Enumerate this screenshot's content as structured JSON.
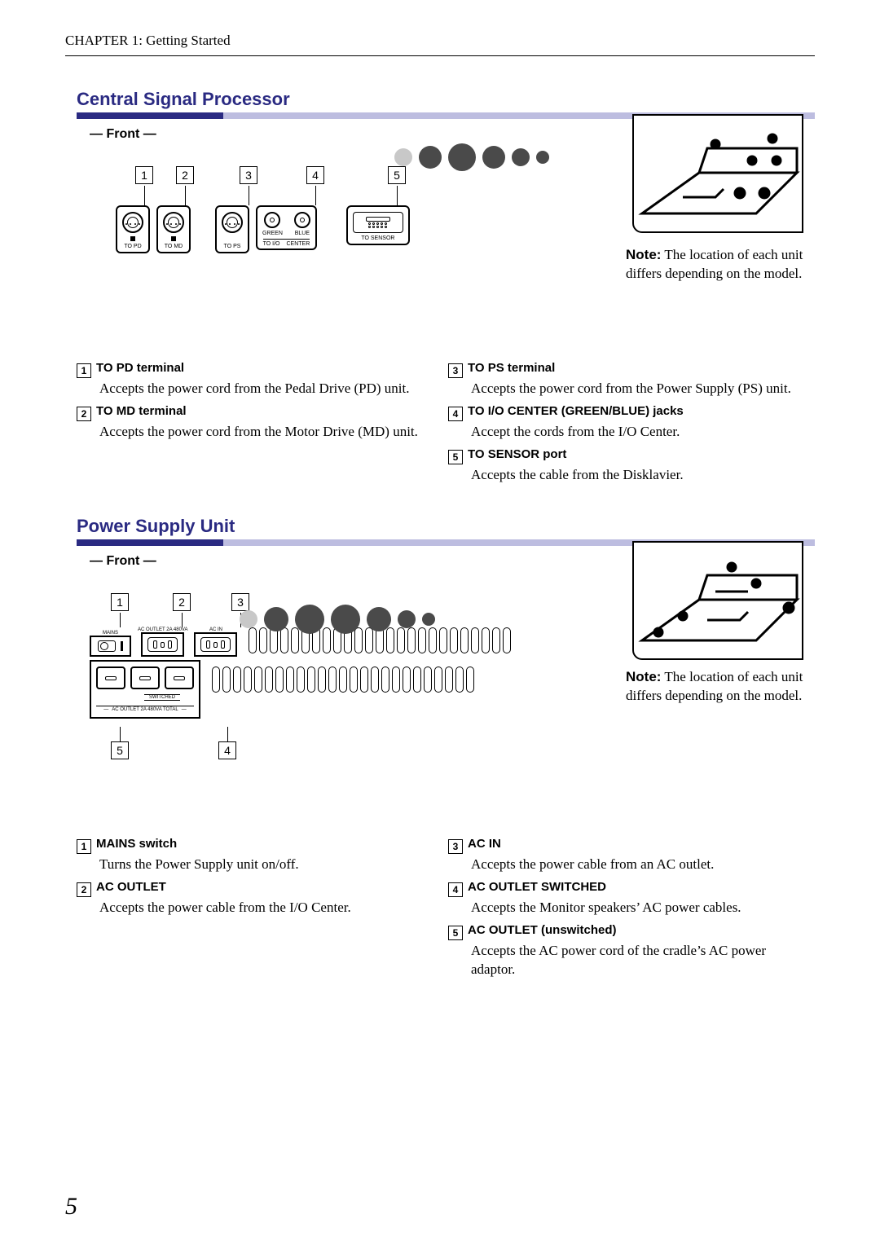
{
  "page": {
    "running_head": "CHAPTER 1: Getting Started",
    "number": "5"
  },
  "colors": {
    "accent": "#2a2a82",
    "accent_light": "#bdbde0",
    "text": "#000000",
    "background": "#ffffff"
  },
  "csp": {
    "title": "Central Signal Processor",
    "front": "— Front —",
    "ports": {
      "pd": "TO PD",
      "md": "TO MD",
      "ps": "TO PS",
      "io_left": "GREEN",
      "io_right": "BLUE",
      "io_sub": "TO I/O",
      "io_sub2": "CENTER",
      "sensor": "TO SENSOR"
    },
    "note_bold": "Note:",
    "note_text": " The location of each unit differs depending on the model.",
    "defs": [
      {
        "num": "1",
        "title": "TO PD terminal",
        "body": "Accepts the power cord from the Pedal Drive (PD) unit."
      },
      {
        "num": "2",
        "title": "TO MD terminal",
        "body": "Accepts the power cord from the Motor Drive (MD) unit."
      },
      {
        "num": "3",
        "title": "TO PS terminal",
        "body": "Accepts the power cord from the Power Supply (PS) unit."
      },
      {
        "num": "4",
        "title": "TO I/O CENTER (GREEN/BLUE) jacks",
        "body": "Accept the cords from the I/O Center."
      },
      {
        "num": "5",
        "title": "TO SENSOR port",
        "body": "Accepts the cable from the Disklavier."
      }
    ]
  },
  "psu": {
    "title": "Power Supply Unit",
    "front": "— Front —",
    "labels": {
      "mains": "MAINS",
      "ac_out_hdr": "AC  OUTLET  2A  480VA",
      "ac_in": "AC  IN",
      "switched": "SWITCHED",
      "bottom_line": "AC  OUTLET  2A  480VA  TOTAL"
    },
    "note_bold": "Note:",
    "note_text": " The location of each unit differs depending on the model.",
    "defs": [
      {
        "num": "1",
        "title": "MAINS switch",
        "body": "Turns the Power Supply unit on/off."
      },
      {
        "num": "2",
        "title": "AC OUTLET",
        "body": "Accepts the power cable from the I/O Center."
      },
      {
        "num": "3",
        "title": "AC IN",
        "body": "Accepts the power cable from an AC outlet."
      },
      {
        "num": "4",
        "title": "AC OUTLET SWITCHED",
        "body": "Accepts the Monitor speakers’ AC power cables."
      },
      {
        "num": "5",
        "title": "AC OUTLET (unswitched)",
        "body": "Accepts the AC power cord of the cradle’s AC power adaptor."
      }
    ]
  }
}
